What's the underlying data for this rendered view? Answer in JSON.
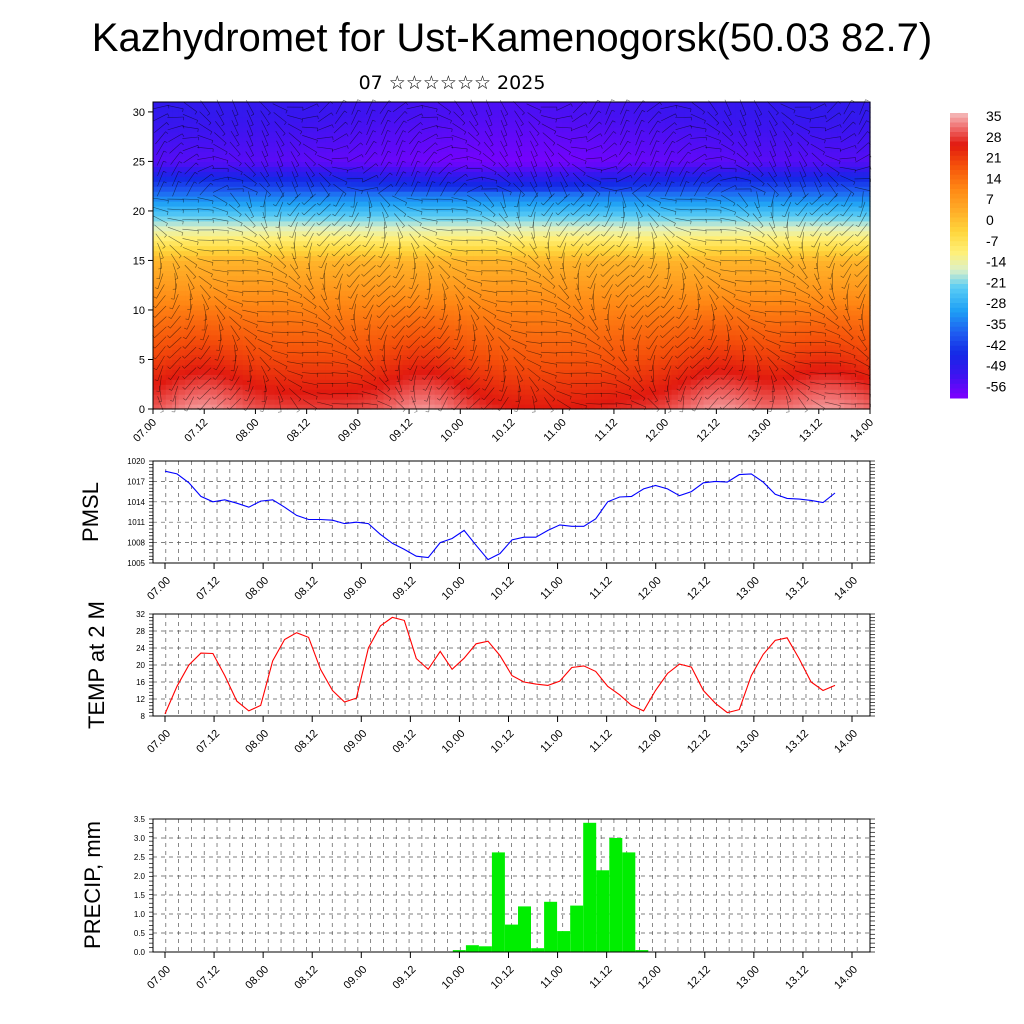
{
  "title": "Kazhydromet for Ust-Kamenogorsk(50.03 82.7)",
  "date_line": "07 ☆☆☆☆☆☆ 2025",
  "colors": {
    "pmsl_line": "#0000ff",
    "temp_line": "#ff0000",
    "precip_bar": "#00ee00",
    "colormap_cold": "#7f00ff",
    "colormap_warm": "#ff0000"
  },
  "time_ticks": [
    "07.00",
    "07.12",
    "08.00",
    "08.12",
    "09.00",
    "09.12",
    "10.00",
    "10.12",
    "11.00",
    "11.12",
    "12.00",
    "12.12",
    "13.00",
    "13.12",
    "14.00"
  ],
  "chart_data": [
    {
      "type": "heatmap",
      "title": "",
      "xlabel": "",
      "ylabel": "",
      "x_ticks": [
        "07.00",
        "07.12",
        "08.00",
        "08.12",
        "09.00",
        "09.12",
        "10.00",
        "10.12",
        "11.00",
        "11.12",
        "12.00",
        "12.12",
        "13.00",
        "13.12",
        "14.00"
      ],
      "y_ticks": [
        0,
        5,
        10,
        15,
        20,
        25,
        30
      ],
      "ylim": [
        0,
        31
      ],
      "colorbar_labels": [
        "35",
        "28",
        "21",
        "14",
        "7",
        "0",
        "-7",
        "-14",
        "-21",
        "-28",
        "-35",
        "-42",
        "-49",
        "-56"
      ],
      "colorbar_range": [
        -60,
        38
      ],
      "overlay": "wind barbs",
      "levels": [
        0,
        5,
        10,
        15,
        20,
        25,
        30
      ],
      "level_profile": [
        30,
        21,
        13,
        3,
        -25,
        -55,
        -50
      ],
      "warm_anomaly_times": [
        "07.06",
        "09.12",
        "12.12",
        "13.18"
      ]
    },
    {
      "type": "line",
      "ylabel": "PMSL",
      "x_ticks": [
        "07.00",
        "07.12",
        "08.00",
        "08.12",
        "09.00",
        "09.12",
        "10.00",
        "10.12",
        "11.00",
        "11.12",
        "12.00",
        "12.12",
        "13.00",
        "13.12",
        "14.00"
      ],
      "y_ticks": [
        "1005",
        "1008",
        "1011",
        "1014",
        "1017",
        "1020"
      ],
      "ylim": [
        1005,
        1020
      ],
      "x_hours_step": 3,
      "series": [
        {
          "values": [
            1018.5,
            1018.1,
            1016.8,
            1014.8,
            1014.0,
            1014.3,
            1013.8,
            1013.2,
            1014.1,
            1014.3,
            1013.2,
            1012.0,
            1011.4,
            1011.4,
            1011.3,
            1010.8,
            1011.0,
            1010.8,
            1009.2,
            1007.9,
            1007.0,
            1006.0,
            1005.8,
            1008.0,
            1008.6,
            1009.8,
            1007.6,
            1005.5,
            1006.4,
            1008.4,
            1008.8,
            1008.8,
            1009.8,
            1010.6,
            1010.4,
            1010.4,
            1011.5,
            1014.0,
            1014.7,
            1014.8,
            1015.9,
            1016.4,
            1015.9,
            1014.9,
            1015.5,
            1016.8,
            1017.0,
            1016.9,
            1018.0,
            1018.1,
            1016.9,
            1015.1,
            1014.5,
            1014.4,
            1014.2,
            1013.9,
            1015.3
          ]
        }
      ]
    },
    {
      "type": "line",
      "ylabel": "TEMP at 2 M",
      "x_ticks": [
        "07.00",
        "07.12",
        "08.00",
        "08.12",
        "09.00",
        "09.12",
        "10.00",
        "10.12",
        "11.00",
        "11.12",
        "12.00",
        "12.12",
        "13.00",
        "13.12",
        "14.00"
      ],
      "y_ticks": [
        "8",
        "12",
        "16",
        "20",
        "24",
        "28",
        "32"
      ],
      "ylim": [
        8,
        32
      ],
      "x_hours_step": 3,
      "series": [
        {
          "values": [
            8.5,
            15.0,
            20.0,
            22.8,
            22.7,
            17.5,
            11.5,
            9.2,
            10.5,
            21.0,
            26.0,
            27.6,
            26.5,
            19.0,
            14.0,
            11.3,
            12.2,
            24.0,
            29.2,
            31.2,
            30.5,
            21.5,
            19.0,
            23.2,
            19.0,
            21.6,
            25.0,
            25.6,
            22.2,
            17.5,
            16.0,
            15.5,
            15.2,
            16.2,
            19.4,
            19.8,
            18.5,
            15.0,
            13.0,
            10.5,
            9.2,
            14.0,
            18.0,
            20.2,
            19.5,
            14.0,
            11.0,
            8.8,
            9.5,
            17.5,
            22.5,
            25.8,
            26.4,
            21.5,
            16.0,
            14.0,
            15.2
          ]
        }
      ]
    },
    {
      "type": "bar",
      "ylabel": "PRECIP, mm",
      "x_ticks": [
        "07.00",
        "07.12",
        "08.00",
        "08.12",
        "09.00",
        "09.12",
        "10.00",
        "10.12",
        "11.00",
        "11.12",
        "12.00",
        "12.12",
        "13.00",
        "13.12",
        "14.00"
      ],
      "y_ticks": [
        "0.0",
        "0.5",
        "1.0",
        "1.5",
        "2.0",
        "2.5",
        "3.0",
        "3.5"
      ],
      "ylim": [
        0,
        3.5
      ],
      "x_hours_step": 3,
      "values": [
        0,
        0,
        0,
        0,
        0,
        0,
        0,
        0,
        0,
        0,
        0,
        0,
        0,
        0,
        0,
        0,
        0,
        0,
        0,
        0,
        0,
        0,
        0,
        0.05,
        0.18,
        0.15,
        2.62,
        0.72,
        1.2,
        0.1,
        1.32,
        0.55,
        1.22,
        3.4,
        2.15,
        3.0,
        2.62,
        0.05,
        0,
        0,
        0,
        0,
        0,
        0,
        0,
        0,
        0,
        0,
        0,
        0,
        0,
        0,
        0,
        0,
        0,
        0
      ]
    }
  ]
}
